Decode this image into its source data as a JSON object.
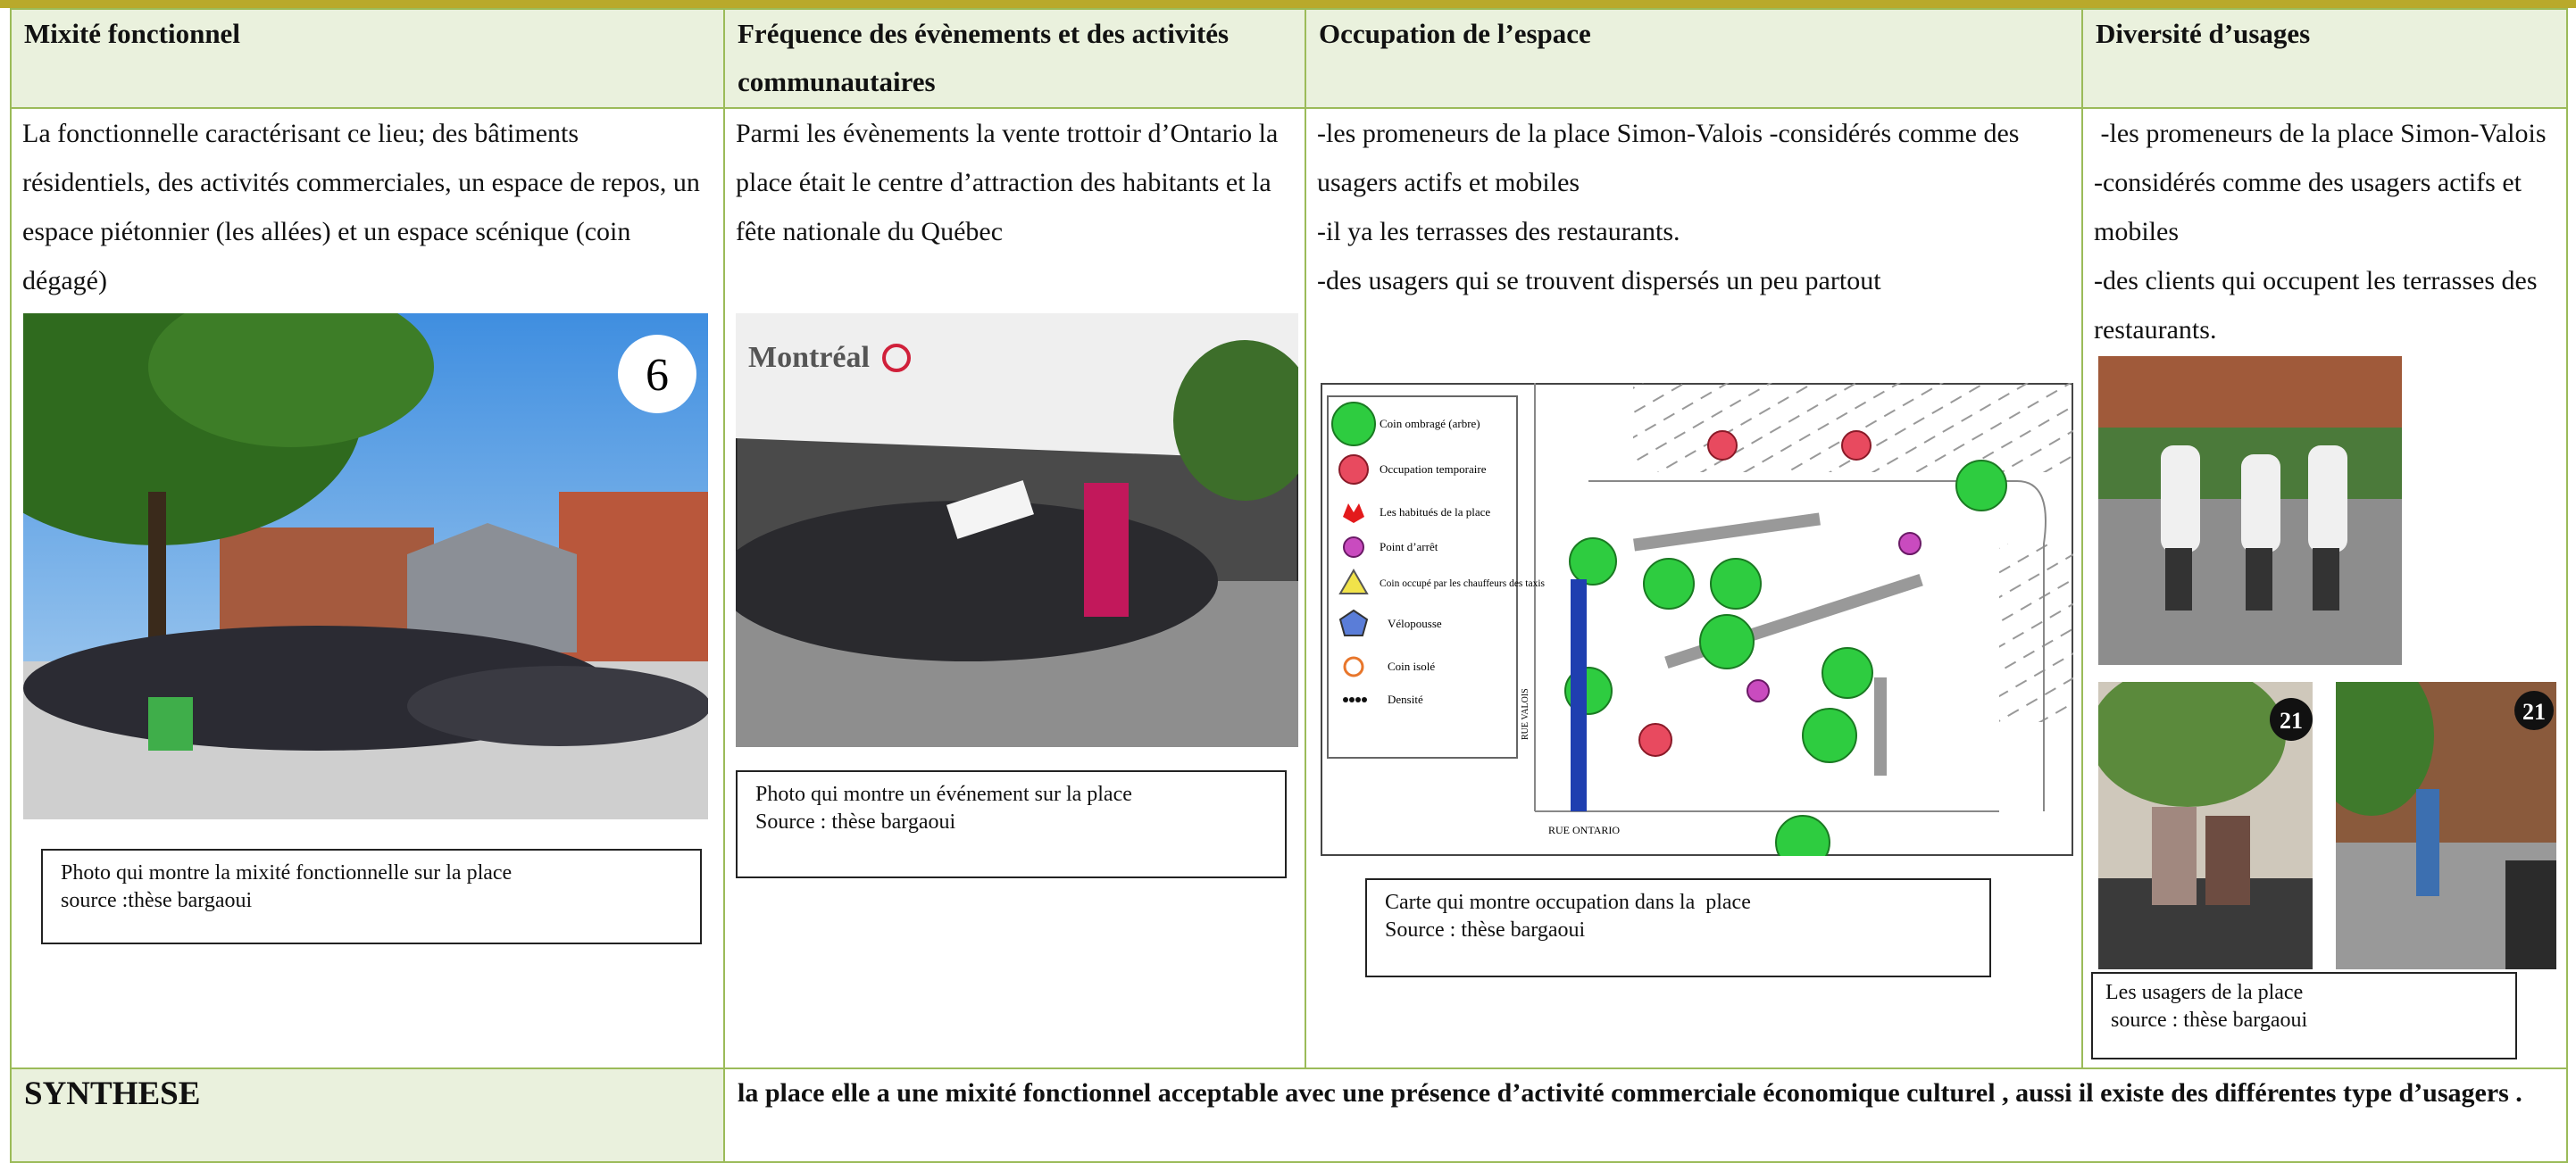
{
  "table": {
    "header": [
      "Mixité fonctionnel",
      "Fréquence des évènements et des activités communautaires",
      "Occupation de l’espace",
      "Diversité d’usages"
    ],
    "columns": [
      {
        "paragraphs": [
          "La fonctionnelle caractérisant ce lieu; des bâtiments résidentiels, des activités commerciales, un espace de repos, un espace piétonnier (les allées) et un espace scénique (coin dégagé)"
        ],
        "photo_label": "6",
        "caption": [
          "Photo qui montre la mixité fonctionnelle sur la place",
          "source :thèse bargaoui"
        ]
      },
      {
        "paragraphs": [
          "Parmi les évènements la vente trottoir d’Ontario la place était le centre d’attraction des habitants et la fête nationale du Québec"
        ],
        "photo_label": "Montréal",
        "caption": [
          "Photo qui montre un événement sur la place",
          "Source : thèse bargaoui"
        ]
      },
      {
        "paragraphs": [
          "-les promeneurs de la place Simon-Valois -considérés comme des usagers actifs et mobiles",
          "-il ya les terrasses des restaurants.",
          "-des usagers qui se trouvent dispersés un peu partout"
        ],
        "map": {
          "legend": [
            "Coin ombragé (arbre)",
            "Occupation temporaire",
            "Les habitués de la place",
            "Point d’arrêt",
            "Coin occupé par les chauffeurs des taxis",
            "Vélopousse",
            "Coin isolé",
            "Densité"
          ],
          "streets": [
            "RUE ONTARIO",
            "RUE VALOIS"
          ]
        },
        "caption": [
          "Carte qui montre occupation dans la  place",
          "Source : thèse bargaoui"
        ]
      },
      {
        "paragraphs": [
          " -les promeneurs de la place Simon-Valois -considérés comme des usagers actifs et mobiles",
          "-des clients qui occupent les terrasses des restaurants."
        ],
        "photo_labels": [
          "21",
          "21"
        ],
        "caption": [
          "Les usagers de la place",
          " source : thèse bargaoui"
        ]
      }
    ],
    "synthesis": {
      "label": "SYNTHESE",
      "text": "la place elle a une mixité fonctionnel acceptable avec une présence d’activité commerciale économique  culturel , aussi il existe des différentes  type d’usagers  ."
    }
  }
}
